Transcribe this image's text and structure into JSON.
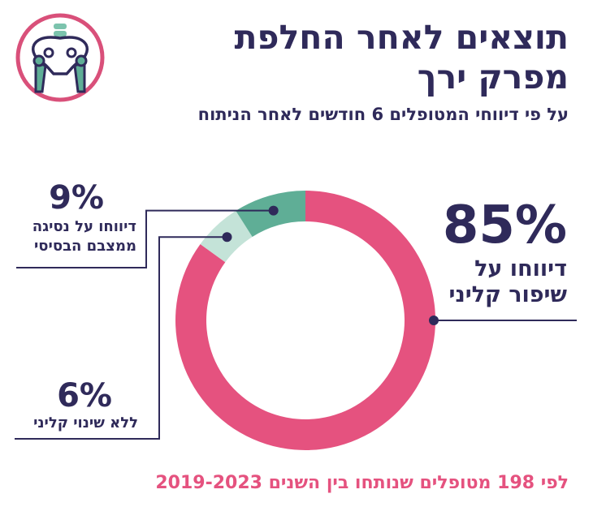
{
  "title": "תוצאים לאחר החלפת מפרק ירך",
  "subtitle": "על פי דיווחי המטופלים 6 חודשים לאחר הניתוח",
  "footer": "לפי 198 מטופלים שנותחו בין השנים 2019-2023",
  "logo": {
    "icon": "pelvis-hip-icon",
    "ring_color": "#d9507a",
    "bone_color": "#2f2a5a",
    "joint_color": "#5fae96"
  },
  "chart_data": {
    "type": "pie",
    "donut": true,
    "slices": [
      {
        "value": 85,
        "label": "85%",
        "description": "דיווחו על שיפור קליני",
        "color": "#e5527f"
      },
      {
        "value": 6,
        "label": "6%",
        "description": "ללא שינוי קליני",
        "color": "#c4e3d8"
      },
      {
        "value": 9,
        "label": "9%",
        "description": "דיווחו על נסיגה ממצבם הבסיסי",
        "color": "#5fae96"
      }
    ],
    "leader_color": "#2f2a5a"
  }
}
